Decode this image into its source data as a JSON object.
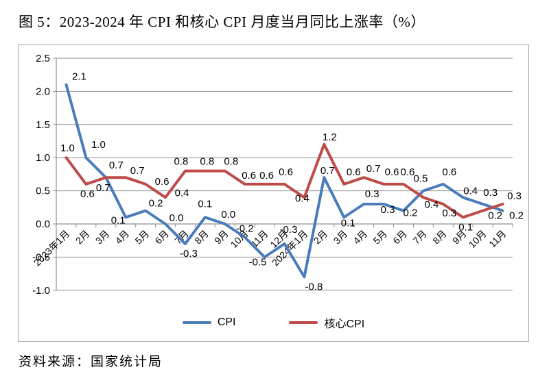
{
  "title": "图 5：2023-2024 年 CPI 和核心 CPI 月度当月同比上涨率（%）",
  "source": "资料来源：国家统计局",
  "colors": {
    "cpi_line": "#4A7CBB",
    "core_cpi_line": "#BE4B48",
    "gridline": "#8f8f8f",
    "axis": "#8f8f8f",
    "label_text": "#000000",
    "frame_border": "#a6a6a6"
  },
  "chart_data": {
    "type": "line",
    "categories": [
      "2023年1月",
      "2月",
      "3月",
      "4月",
      "5月",
      "6月",
      "7月",
      "8月",
      "9月",
      "10月",
      "11月",
      "12月",
      "2024年1月",
      "2月",
      "3月",
      "4月",
      "5月",
      "6月",
      "7月",
      "8月",
      "9月",
      "10月",
      "11月"
    ],
    "series": [
      {
        "name": "CPI",
        "color": "#4A7CBB",
        "values": [
          2.1,
          1.0,
          0.7,
          0.1,
          0.2,
          0.0,
          -0.3,
          0.1,
          0.0,
          -0.2,
          -0.5,
          -0.3,
          -0.8,
          0.7,
          0.1,
          0.3,
          0.3,
          0.2,
          0.5,
          0.6,
          0.4,
          0.3,
          0.2
        ],
        "label_offsets": [
          [
            19,
            -7
          ],
          [
            18,
            -14
          ],
          [
            -4,
            20
          ],
          [
            -11,
            9
          ],
          [
            15,
            -6
          ],
          [
            16,
            -4
          ],
          [
            5,
            19
          ],
          [
            0,
            -15
          ],
          [
            5,
            -9
          ],
          [
            0,
            -8
          ],
          [
            -10,
            12
          ],
          [
            6,
            -16
          ],
          [
            14,
            19
          ],
          [
            5,
            -5
          ],
          [
            6,
            13
          ],
          [
            12,
            -10
          ],
          [
            6,
            13
          ],
          [
            10,
            8
          ],
          [
            -4,
            -13
          ],
          [
            9,
            -13
          ],
          [
            11,
            -5
          ],
          [
            11,
            -12
          ],
          [
            20,
            12
          ]
        ]
      },
      {
        "name": "核心CPI",
        "color": "#BE4B48",
        "values": [
          1.0,
          0.6,
          0.7,
          0.7,
          0.6,
          0.4,
          0.8,
          0.8,
          0.8,
          0.6,
          0.6,
          0.6,
          0.4,
          1.2,
          0.6,
          0.7,
          0.6,
          0.6,
          0.4,
          0.3,
          0.1,
          0.2,
          0.3
        ],
        "label_offsets": [
          [
            2,
            -9
          ],
          [
            2,
            19
          ],
          [
            15,
            -13
          ],
          [
            17,
            -5
          ],
          [
            24,
            1
          ],
          [
            24,
            -2
          ],
          [
            -6,
            -9
          ],
          [
            3,
            -9
          ],
          [
            9,
            -9
          ],
          [
            6,
            -8
          ],
          [
            3,
            -8
          ],
          [
            2,
            -13
          ],
          [
            -3,
            6
          ],
          [
            8,
            -6
          ],
          [
            14,
            -13
          ],
          [
            14,
            -8
          ],
          [
            12,
            -13
          ],
          [
            6,
            -13
          ],
          [
            12,
            15
          ],
          [
            9,
            18
          ],
          [
            4,
            19
          ],
          [
            18,
            12
          ],
          [
            17,
            -7
          ]
        ]
      }
    ],
    "ylim": [
      -1.0,
      2.5
    ],
    "ytick_step": 0.5,
    "ytick_labels": [
      "2.5",
      "2.0",
      "1.5",
      "1.0",
      "0.5",
      "0.0",
      "-0.5",
      "-1.0"
    ],
    "grid": true,
    "legend_position": "bottom",
    "value_label_decimals": 1
  }
}
